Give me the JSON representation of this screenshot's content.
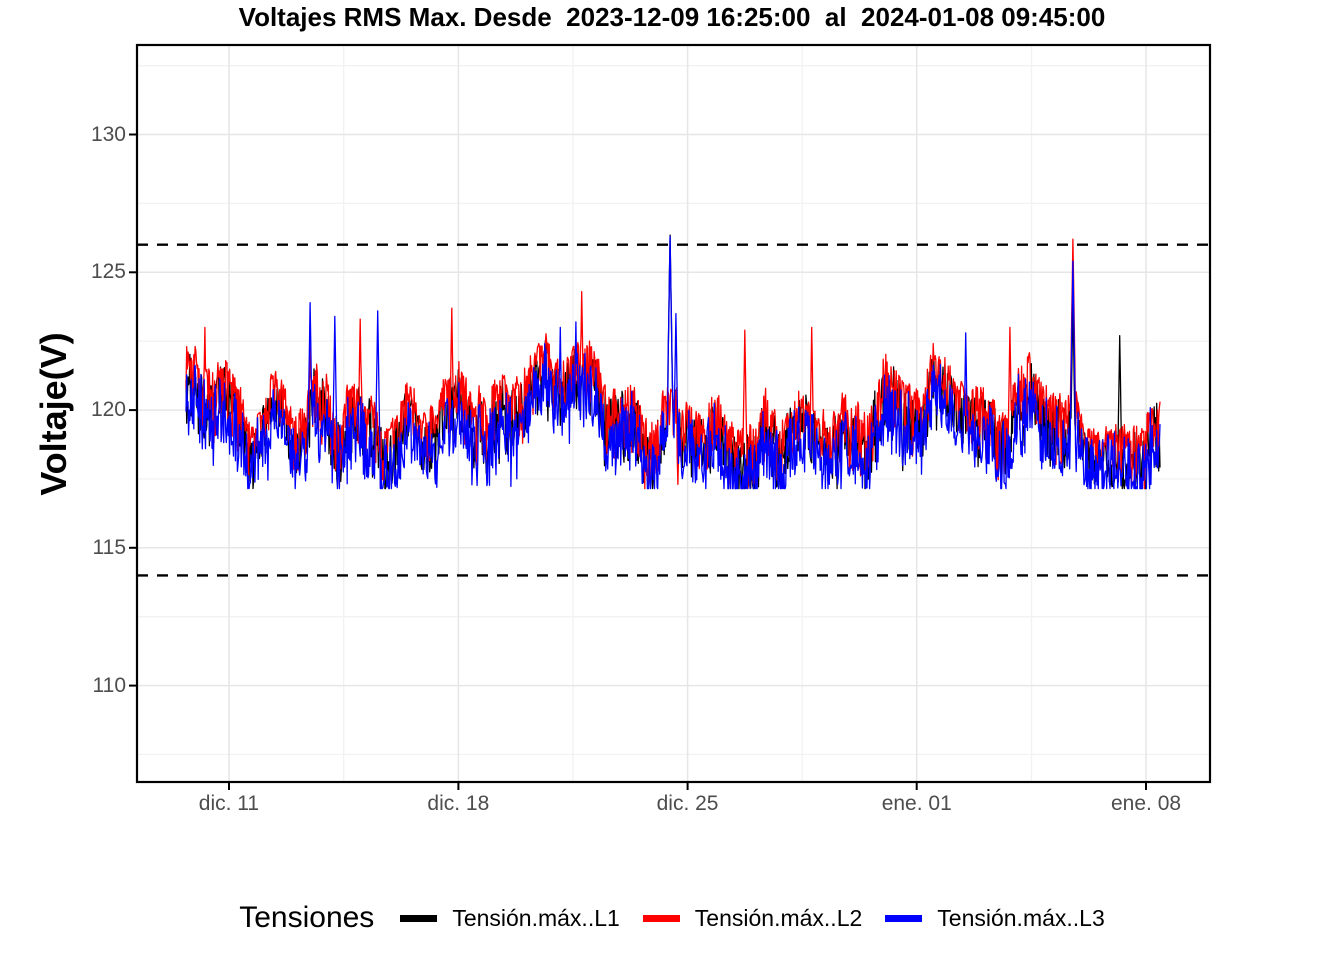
{
  "title": "Voltajes RMS Max. Desde  2023-12-09 16:25:00  al  2024-01-08 09:45:00",
  "axis_text_color": "#4D4D4D",
  "chart_data": {
    "type": "line",
    "title": "Voltajes RMS Max. Desde  2023-12-09 16:25:00  al  2024-01-08 09:45:00",
    "xlabel": "",
    "ylabel": "Voltaje(V)",
    "x_start_label": "2023-12-09 16:25:00",
    "x_end_label": "2024-01-08 09:45:00",
    "ylim": [
      106.5,
      133.25
    ],
    "y_ticks": [
      110,
      115,
      120,
      125,
      130
    ],
    "y_minor": [
      107.5,
      112.5,
      117.5,
      122.5,
      127.5,
      132.5
    ],
    "x_ticks": [
      {
        "label": "dic. 11",
        "f": 0.0857
      },
      {
        "label": "dic. 18",
        "f": 0.2995
      },
      {
        "label": "dic. 25",
        "f": 0.5131
      },
      {
        "label": "ene. 01",
        "f": 0.7267
      },
      {
        "label": "ene. 08",
        "f": 0.9404
      }
    ],
    "x_minor_f": [
      0.1926,
      0.4063,
      0.6199,
      0.8336
    ],
    "data_span_f": [
      0.0457,
      0.9534
    ],
    "grid": {
      "major_color": "#E6E6E6",
      "minor_color": "#F2F2F2",
      "on": true,
      "background": "#FFFFFF",
      "panel_border": "#000000"
    },
    "reference_lines": {
      "values": [
        126,
        114
      ],
      "color": "#000000",
      "style": "dashed"
    },
    "legend_position": "bottom",
    "series": [
      {
        "role": "L1",
        "name": "Tensión.máx..L1",
        "color": "#000000"
      },
      {
        "role": "L2",
        "name": "Tensión.máx..L2",
        "color": "#FF0000"
      },
      {
        "role": "L3",
        "name": "Tensión.máx..L3",
        "color": "#0000FF"
      }
    ],
    "band": {
      "typical_min": 117.3,
      "typical_max": 122.8,
      "center": 120.3,
      "note": "three phase RMS max voltages tightly overlapping noisy band; L2 envelope highest, L3 drawn on top with deepest dips"
    },
    "spikes": [
      {
        "f": 0.0195,
        "series": "L2",
        "value": 123.0
      },
      {
        "f": 0.1273,
        "series": "L3",
        "value": 123.9
      },
      {
        "f": 0.1273,
        "series": "L2",
        "value": 122.7
      },
      {
        "f": 0.153,
        "series": "L3",
        "value": 123.4
      },
      {
        "f": 0.1786,
        "series": "L2",
        "value": 123.3
      },
      {
        "f": 0.1971,
        "series": "L3",
        "value": 123.6
      },
      {
        "f": 0.2731,
        "series": "L2",
        "value": 123.7
      },
      {
        "f": 0.384,
        "series": "L3",
        "value": 123.0
      },
      {
        "f": 0.4,
        "series": "L3",
        "value": 123.2
      },
      {
        "f": 0.4066,
        "series": "L2",
        "value": 124.3
      },
      {
        "f": 0.4969,
        "series": "L1",
        "value": 126.35
      },
      {
        "f": 0.4969,
        "series": "L3",
        "value": 126.3
      },
      {
        "f": 0.5031,
        "series": "L3",
        "value": 123.5
      },
      {
        "f": 0.5051,
        "series": "L2",
        "value": 117.3,
        "dip": true
      },
      {
        "f": 0.5739,
        "series": "L2",
        "value": 122.9
      },
      {
        "f": 0.6427,
        "series": "L2",
        "value": 123.0
      },
      {
        "f": 0.8008,
        "series": "L3",
        "value": 122.8
      },
      {
        "f": 0.846,
        "series": "L2",
        "value": 123.0
      },
      {
        "f": 0.9107,
        "series": "L2",
        "value": 126.2
      },
      {
        "f": 0.9107,
        "series": "L3",
        "value": 125.4
      },
      {
        "f": 0.9107,
        "series": "L1",
        "value": 124.0
      },
      {
        "f": 0.9589,
        "series": "L1",
        "value": 122.7
      }
    ],
    "generator": {
      "seed": 1209,
      "n_points": 1500,
      "envelope_center": 120.55,
      "envelope_clamp": [
        119.0,
        122.45
      ],
      "spread_base": 1.55,
      "floor": 117.15,
      "cap": 123.0
    }
  },
  "legend": {
    "title": "Tensiones",
    "items": [
      {
        "label": "Tensión.máx..L1",
        "color": "#000000",
        "role": "L1"
      },
      {
        "label": "Tensión.máx..L2",
        "color": "#FF0000",
        "role": "L2"
      },
      {
        "label": "Tensión.máx..L3",
        "color": "#0000FF",
        "role": "L3"
      }
    ]
  }
}
